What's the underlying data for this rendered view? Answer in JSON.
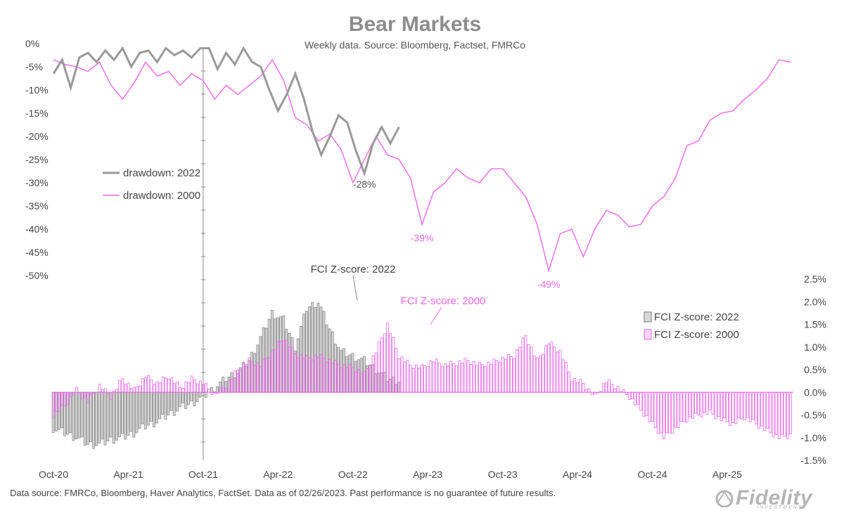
{
  "header": {
    "title": "Bear Markets",
    "subtitle": "Weekly data.  Source: Bloomberg, Factset, FMRCo"
  },
  "footer": {
    "note": "Data source: FMRCo, Bloomberg, Haver Analytics, FactSet. Data as of 02/26/2023. Past performance is no guarantee of future results."
  },
  "logo": {
    "text": "Fidelity",
    "subtext": "INVESTMENTS"
  },
  "colors": {
    "series_2022": "#999999",
    "series_2000": "#ee66ee",
    "bar_2022_fill": "#d8d8d8",
    "bar_2000_fill": "#fbd6fb",
    "axis": "#888888"
  },
  "chart_data": [
    {
      "type": "line",
      "title": "Bear Markets",
      "ylabel": "drawdown",
      "ylim": [
        -50,
        0
      ],
      "y_ticks": [
        "0%",
        "-5%",
        "-10%",
        "-15%",
        "-20%",
        "-25%",
        "-30%",
        "-35%",
        "-40%",
        "-45%",
        "-50%"
      ],
      "x_ticks": [
        "Oct-20",
        "Apr-21",
        "Oct-21",
        "Apr-22",
        "Oct-22",
        "Apr-23",
        "Oct-23",
        "Apr-24",
        "Oct-24",
        "Apr-25"
      ],
      "legend_position": "left-middle",
      "series": [
        {
          "name": "drawdown: 2022",
          "weeks": [
            0,
            3,
            6,
            9,
            12,
            15,
            18,
            21,
            24,
            27,
            30,
            33,
            36,
            39,
            42,
            45,
            48,
            51,
            54,
            57,
            60,
            63,
            66,
            69,
            72,
            75,
            78,
            81,
            84,
            87,
            90,
            93,
            96,
            99,
            102,
            105,
            108,
            111,
            114,
            117,
            120
          ],
          "values": [
            -6.5,
            -3.5,
            -9.5,
            -3.0,
            -2.0,
            -4.0,
            -1.5,
            -3.5,
            -1.0,
            -5.0,
            -2.0,
            -1.5,
            -4.0,
            -1.0,
            -2.5,
            -1.5,
            -3.0,
            -1.0,
            -1.0,
            -5.5,
            -2.0,
            -4.5,
            -1.0,
            -4.0,
            -5.0,
            -10.0,
            -14.5,
            -11.0,
            -6.5,
            -12.0,
            -19.0,
            -24.0,
            -20.0,
            -15.5,
            -17.0,
            -23.0,
            -28.0,
            -21.5,
            -18.0,
            -21.5,
            -18.0
          ],
          "label": {
            "week": 108,
            "text": "-28%"
          }
        },
        {
          "name": "drawdown: 2000",
          "weeks": [
            0,
            4,
            8,
            12,
            16,
            20,
            24,
            28,
            32,
            36,
            40,
            44,
            48,
            52,
            56,
            60,
            64,
            68,
            72,
            76,
            80,
            84,
            88,
            92,
            96,
            100,
            104,
            108,
            112,
            116,
            120,
            124,
            128,
            132,
            136,
            140,
            144,
            148,
            152,
            156,
            160,
            164,
            168,
            172,
            176,
            180,
            184,
            188,
            192,
            196,
            200,
            204,
            208,
            212,
            216,
            220,
            224,
            228,
            232,
            236,
            240,
            244,
            248,
            252,
            256
          ],
          "values": [
            -3.5,
            -4.5,
            -5.0,
            -6.0,
            -4.0,
            -9.0,
            -12.0,
            -8.5,
            -4.0,
            -7.0,
            -6.0,
            -9.0,
            -6.5,
            -8.0,
            -12.0,
            -9.0,
            -11.0,
            -9.0,
            -7.0,
            -3.5,
            -8.0,
            -16.0,
            -17.5,
            -21.0,
            -19.5,
            -23.0,
            -30.0,
            -25.0,
            -20.0,
            -24.0,
            -25.0,
            -29.0,
            -39.0,
            -32.0,
            -30.0,
            -27.0,
            -29.0,
            -30.0,
            -27.0,
            -27.0,
            -30.0,
            -33.0,
            -39.0,
            -49.0,
            -41.0,
            -40.0,
            -46.0,
            -40.0,
            -36.0,
            -37.0,
            -39.5,
            -39.0,
            -35.0,
            -33.0,
            -29.0,
            -22.0,
            -21.0,
            -16.5,
            -15.0,
            -14.5,
            -12.0,
            -10.0,
            -7.5,
            -3.5,
            -4.0
          ],
          "labels": [
            {
              "week": 128,
              "text": "-39%"
            },
            {
              "week": 172,
              "text": "-49%"
            }
          ]
        }
      ]
    },
    {
      "type": "bar",
      "title": "FCI Z-score",
      "ylim": [
        -1.5,
        2.5
      ],
      "y_ticks": [
        "2.5%",
        "2.0%",
        "1.5%",
        "1.0%",
        "0.5%",
        "0.0%",
        "-0.5%",
        "-1.0%",
        "-1.5%"
      ],
      "legend_position": "right-middle",
      "annotations": [
        "FCI Z-score: 2022",
        "FCI Z-score: 2000"
      ],
      "series": [
        {
          "name": "FCI Z-score: 2022",
          "weeks": [
            0,
            4,
            8,
            12,
            16,
            20,
            24,
            28,
            32,
            36,
            40,
            44,
            48,
            52,
            56,
            60,
            64,
            68,
            72,
            76,
            80,
            84,
            88,
            92,
            96,
            100,
            104,
            108,
            112,
            116,
            120
          ],
          "values": [
            -0.8,
            -0.9,
            -1.0,
            -1.15,
            -1.15,
            -1.05,
            -1.0,
            -0.9,
            -0.75,
            -0.65,
            -0.5,
            -0.35,
            -0.25,
            -0.1,
            0.1,
            0.3,
            0.45,
            0.7,
            1.2,
            1.75,
            1.6,
            1.0,
            1.85,
            2.0,
            1.4,
            0.9,
            0.8,
            0.7,
            0.5,
            0.3,
            0.25
          ]
        },
        {
          "name": "FCI Z-score: 2000",
          "weeks": [
            0,
            4,
            8,
            12,
            16,
            20,
            24,
            28,
            32,
            36,
            40,
            44,
            48,
            52,
            56,
            60,
            64,
            68,
            72,
            76,
            80,
            84,
            88,
            92,
            96,
            100,
            104,
            108,
            112,
            116,
            120,
            124,
            128,
            132,
            136,
            140,
            144,
            148,
            152,
            156,
            160,
            164,
            168,
            172,
            176,
            180,
            184,
            188,
            192,
            196,
            200,
            204,
            208,
            212,
            216,
            220,
            224,
            228,
            232,
            236,
            240,
            244,
            248,
            252,
            256
          ],
          "values": [
            -0.5,
            -0.3,
            0.05,
            -0.2,
            0.15,
            -0.1,
            0.3,
            0.05,
            0.35,
            0.2,
            0.35,
            0.1,
            0.3,
            0.2,
            -0.05,
            0.15,
            0.5,
            0.7,
            0.6,
            0.9,
            1.2,
            0.85,
            0.75,
            0.8,
            0.7,
            0.6,
            0.55,
            0.4,
            0.9,
            1.5,
            0.8,
            0.6,
            0.55,
            0.7,
            0.6,
            0.65,
            0.7,
            0.6,
            0.65,
            0.75,
            0.8,
            1.25,
            0.7,
            1.1,
            0.9,
            0.3,
            0.2,
            -0.1,
            0.25,
            0.1,
            -0.1,
            -0.4,
            -0.7,
            -1.0,
            -0.8,
            -0.6,
            -0.5,
            -0.45,
            -0.6,
            -0.7,
            -0.55,
            -0.7,
            -0.85,
            -1.0,
            -0.95
          ]
        }
      ]
    }
  ]
}
